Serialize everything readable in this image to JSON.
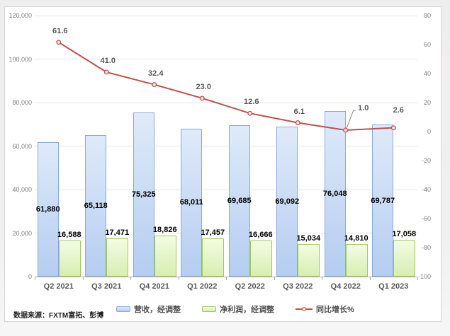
{
  "source_note": "数据来源：FXTM富拓、彭博",
  "chart_data": {
    "type": "bar",
    "subtype": "bar+line combo, dual axis",
    "title": "",
    "xlabel": "",
    "ylabel": "",
    "categories": [
      "Q2 2021",
      "Q3 2021",
      "Q4 2021",
      "Q1 2022",
      "Q2 2022",
      "Q3 2022",
      "Q4 2022",
      "Q1 2023"
    ],
    "series": [
      {
        "name": "营收，经调整",
        "type": "bar",
        "axis": "left",
        "values": [
          61880,
          65118,
          75325,
          68011,
          69685,
          69092,
          76048,
          69787
        ],
        "fill_top": "#dfeafa",
        "fill_bottom": "#b5cdf0",
        "border": "#8aa9da",
        "label_position": "inside-center"
      },
      {
        "name": "净利润，经调整",
        "type": "bar",
        "axis": "left",
        "values": [
          16588,
          17471,
          18826,
          17457,
          16666,
          15034,
          14810,
          17058
        ],
        "fill_top": "#f3fce2",
        "fill_bottom": "#d7eeb2",
        "border": "#a2c75f",
        "label_position": "outside-end"
      },
      {
        "name": "同比增长%",
        "type": "line",
        "axis": "right",
        "values": [
          61.6,
          41.0,
          32.4,
          23.0,
          12.6,
          6.1,
          1.0,
          2.6
        ],
        "color": "#c0504d",
        "marker_fill": "#f5e3e2",
        "label_position": "above"
      }
    ],
    "left_axis": {
      "min": 0,
      "max": 120000,
      "step": 20000
    },
    "right_axis": {
      "min": -100,
      "max": 80,
      "step": 20
    },
    "grid": true,
    "legend_position": "bottom"
  }
}
